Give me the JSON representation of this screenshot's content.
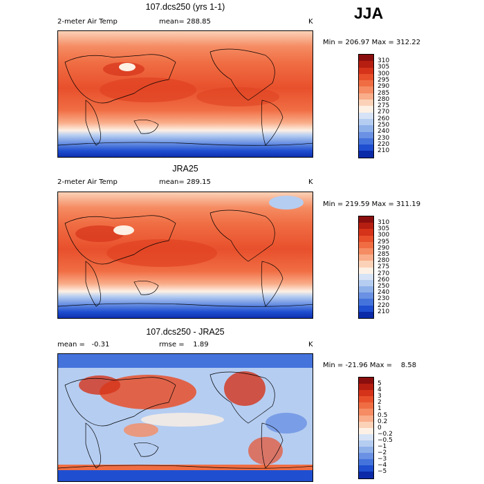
{
  "season": "JJA",
  "panels": [
    {
      "title": "107.dcs250 (yrs 1-1)",
      "left": "2-meter Air Temp",
      "center": "mean= 288.85",
      "right": "K",
      "minmax": "Min = 206.97 Max = 312.22",
      "cbar_labels": [
        "310",
        "305",
        "300",
        "295",
        "290",
        "285",
        "280",
        "275",
        "270",
        "260",
        "250",
        "240",
        "230",
        "220",
        "210"
      ],
      "cbar_colors": [
        "#8b0e0e",
        "#b51e10",
        "#d5331a",
        "#e8502c",
        "#f06d43",
        "#f58c63",
        "#f9ad8a",
        "#fbd2b8",
        "#fdf0e4",
        "#d6e3f6",
        "#b5cdf1",
        "#8fb1ea",
        "#6a91e3",
        "#4473dc",
        "#1f4fd0",
        "#0b2aa8"
      ]
    },
    {
      "title": "JRA25",
      "left": "2-meter Air Temp",
      "center": "mean= 289.15",
      "right": "K",
      "minmax": "Min = 219.59 Max = 311.19",
      "cbar_labels": [
        "310",
        "305",
        "300",
        "295",
        "290",
        "285",
        "280",
        "275",
        "270",
        "260",
        "250",
        "240",
        "230",
        "220",
        "210"
      ],
      "cbar_colors": [
        "#8b0e0e",
        "#b51e10",
        "#d5331a",
        "#e8502c",
        "#f06d43",
        "#f58c63",
        "#f9ad8a",
        "#fbd2b8",
        "#fdf0e4",
        "#d6e3f6",
        "#b5cdf1",
        "#8fb1ea",
        "#6a91e3",
        "#4473dc",
        "#1f4fd0",
        "#0b2aa8"
      ]
    },
    {
      "title": "107.dcs250 - JRA25",
      "left": "mean =   -0.31",
      "center": "rmse =    1.89",
      "right": "K",
      "minmax": "Min = -21.96 Max =    8.58",
      "cbar_labels": [
        "5",
        "4",
        "3",
        "2",
        "1",
        "0.5",
        "0.2",
        "0",
        "−0.2",
        "−0.5",
        "−1",
        "−2",
        "−3",
        "−4",
        "−5"
      ],
      "cbar_colors": [
        "#8b0e0e",
        "#b51e10",
        "#d5331a",
        "#e8502c",
        "#f06d43",
        "#f58c63",
        "#f9ad8a",
        "#fbd2b8",
        "#fdf0e4",
        "#d6e3f6",
        "#b5cdf1",
        "#8fb1ea",
        "#6a91e3",
        "#4473dc",
        "#1f4fd0",
        "#0b2aa8"
      ]
    }
  ]
}
